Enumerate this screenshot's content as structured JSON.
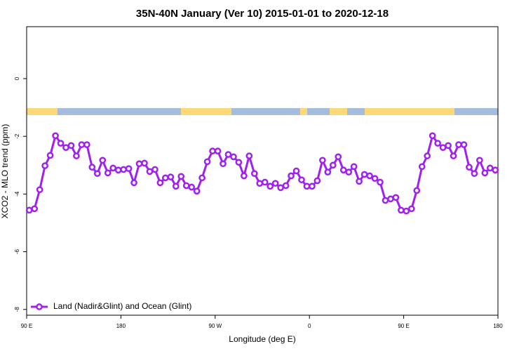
{
  "chart_data": {
    "type": "line",
    "title": "35N-40N January (Ver 10)   2015-01-01 to 2020-12-18",
    "x_label": "Longitude (deg E)",
    "y_label": "XCO2 - MLO trend (ppm)",
    "x": [
      92.5,
      97.5,
      102.5,
      107.5,
      112.5,
      117.5,
      122.5,
      127.5,
      132.5,
      137.5,
      142.5,
      147.5,
      152.5,
      157.5,
      162.5,
      167.5,
      172.5,
      177.5,
      182.5,
      187.5,
      192.5,
      197.5,
      202.5,
      207.5,
      212.5,
      217.5,
      222.5,
      227.5,
      232.5,
      237.5,
      242.5,
      247.5,
      252.5,
      257.5,
      262.5,
      267.5,
      272.5,
      277.5,
      282.5,
      287.5,
      292.5,
      297.5,
      302.5,
      307.5,
      312.5,
      317.5,
      322.5,
      327.5,
      332.5,
      337.5,
      342.5,
      347.5,
      352.5,
      357.5,
      362.5,
      367.5,
      372.5,
      377.5,
      382.5,
      387.5,
      392.5,
      397.5,
      402.5,
      407.5,
      412.5,
      417.5,
      422.5,
      427.5,
      432.5,
      437.5,
      442.5,
      447.5,
      452.5,
      457.5,
      462.5,
      467.5,
      472.5,
      477.5,
      482.5,
      487.5,
      492.5,
      497.5,
      502.5,
      507.5,
      512.5,
      517.5,
      522.5,
      527.5,
      532.5,
      537.5
    ],
    "series": [
      {
        "name": "Land (Nadir&Glint) and Ocean (Glint)",
        "color": "#a020f0",
        "values": [
          -4.56,
          -4.51,
          -3.85,
          -3.02,
          -2.66,
          -1.98,
          -2.24,
          -2.39,
          -2.32,
          -2.68,
          -2.29,
          -2.29,
          -3.07,
          -3.29,
          -2.83,
          -3.27,
          -3.1,
          -3.17,
          -3.15,
          -3.12,
          -3.61,
          -2.95,
          -2.93,
          -3.22,
          -3.15,
          -3.61,
          -3.44,
          -3.41,
          -3.73,
          -3.39,
          -3.71,
          -3.76,
          -3.9,
          -3.44,
          -2.88,
          -2.51,
          -2.51,
          -2.95,
          -2.63,
          -2.71,
          -2.9,
          -3.37,
          -2.68,
          -3.29,
          -3.63,
          -3.59,
          -3.73,
          -3.63,
          -3.78,
          -3.71,
          -3.37,
          -3.2,
          -3.51,
          -3.73,
          -3.73,
          -3.54,
          -2.83,
          -3.24,
          -3.0,
          -2.71,
          -3.17,
          -3.24,
          -3.05,
          -3.56,
          -3.32,
          -3.37,
          -3.46,
          -3.59,
          -4.22,
          -4.17,
          -4.12,
          -4.56,
          -4.59,
          -4.51,
          -3.88,
          -3.05,
          -2.68,
          -1.98,
          -2.24,
          -2.39,
          -2.32,
          -2.68,
          -2.29,
          -2.29,
          -3.07,
          -3.29,
          -2.83,
          -3.27,
          -3.1,
          -3.17
        ]
      }
    ],
    "xlim": [
      90,
      540
    ],
    "xticks": [
      {
        "value": 90,
        "label": "90 E"
      },
      {
        "value": 180,
        "label": "180"
      },
      {
        "value": 270,
        "label": "90 W"
      },
      {
        "value": 360,
        "label": "0"
      },
      {
        "value": 450,
        "label": "90 E"
      },
      {
        "value": 540,
        "label": "180"
      }
    ],
    "ylim": [
      -8.2,
      1.8
    ],
    "yticks": [
      0,
      -2,
      -4,
      -6,
      -8
    ],
    "grid": false,
    "legend": "bottom-left"
  }
}
